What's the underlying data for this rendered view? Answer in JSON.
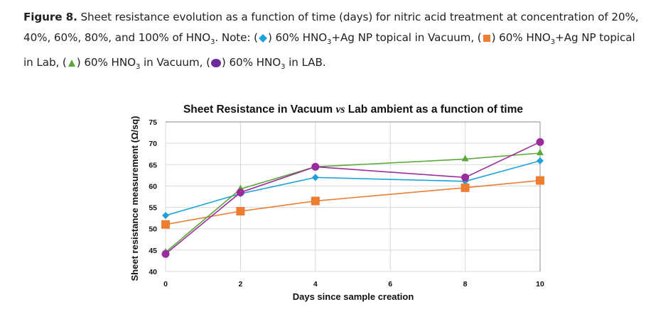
{
  "caption": {
    "figure_label": "Figure 8.",
    "line1_text": " Sheet resistance evolution as a function of time (days) for nitric acid treatment at concentration of 20%,",
    "line2_pre": "40%, 60%, 80%, and 100% of HNO",
    "sub3": "3",
    "line2_note": ". Note: (",
    "legend_items": [
      {
        "symbol": "diamond-icon",
        "text_pre": ") 60% HNO",
        "text_post": "+Ag NP topical in Vacuum, ("
      },
      {
        "symbol": "square-icon",
        "text_pre": ") 60% HNO",
        "text_post": "+Ag NP topical"
      },
      {
        "symbol": "triangle-icon",
        "text_pre": ") 60% HNO",
        "text_post": " in Vacuum, ("
      },
      {
        "symbol": "circle-icon",
        "text_pre": ") 60% HNO",
        "text_post": " in LAB."
      }
    ],
    "line3_pre": "in Lab, ("
  },
  "colors": {
    "blue": "#1ea0d8",
    "orange": "#ed7d31",
    "green": "#5aa83a",
    "purple": "#9b2c9b",
    "grid": "#d9d9d9",
    "axis": "#888888"
  },
  "chart_data": {
    "type": "line",
    "title_pre": "Sheet Resistance in Vacuum ",
    "title_vs": "vs",
    "title_post": " Lab ambient as a function of time",
    "xlabel": "Days since sample creation",
    "ylabel": "Sheet resistance measurement (Ω/sq)",
    "xlim": [
      0,
      10
    ],
    "ylim": [
      40,
      75
    ],
    "xticks": [
      0,
      2,
      4,
      6,
      8,
      10
    ],
    "yticks": [
      40,
      45,
      50,
      55,
      60,
      65,
      70,
      75
    ],
    "grid": true,
    "legend": "none (in caption)",
    "x": [
      0,
      2,
      4,
      8,
      10
    ],
    "series": [
      {
        "name": "60% HNO3+Ag NP topical in Vacuum",
        "marker": "diamond",
        "color": "#1ea0d8",
        "values": [
          53.1,
          58.2,
          62.0,
          61.1,
          65.9
        ]
      },
      {
        "name": "60% HNO3+Ag NP topical in Lab",
        "marker": "square",
        "color": "#ed7d31",
        "values": [
          51.0,
          54.1,
          56.5,
          59.6,
          61.3
        ]
      },
      {
        "name": "60% HNO3 in Vacuum",
        "marker": "triangle",
        "color": "#5aa83a",
        "values": [
          44.5,
          59.3,
          64.5,
          66.3,
          67.7
        ]
      },
      {
        "name": "60% HNO3 in LAB",
        "marker": "circle",
        "color": "#9b2c9b",
        "values": [
          44.1,
          58.5,
          64.5,
          62.0,
          70.3
        ]
      }
    ]
  }
}
